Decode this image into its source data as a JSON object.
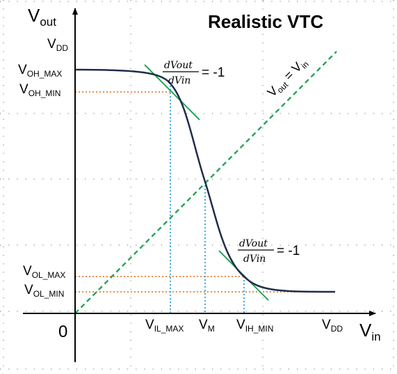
{
  "title": "Realistic VTC",
  "axes": {
    "y_main": "V",
    "y_sub": "out",
    "x_main": "V",
    "x_sub": "in",
    "origin": "0"
  },
  "y_levels": {
    "vdd": {
      "main": "V",
      "sub": "DD"
    },
    "voh_max": {
      "main": "V",
      "sub": "OH_MAX"
    },
    "voh_min": {
      "main": "V",
      "sub": "OH_MIN"
    },
    "vol_max": {
      "main": "V",
      "sub": "OL_MAX"
    },
    "vol_min": {
      "main": "V",
      "sub": "OL_MIN"
    }
  },
  "x_levels": {
    "vil_max": {
      "main": "V",
      "sub": "IL_MAX"
    },
    "vm": {
      "main": "V",
      "sub": "M"
    },
    "vih_min": {
      "main": "V",
      "sub": "IH_MIN"
    },
    "vdd": {
      "main": "V",
      "sub": "DD"
    }
  },
  "diagonal": {
    "a_main": "V",
    "a_sub": "out",
    "eq": " = ",
    "b_main": "V",
    "b_sub": "in"
  },
  "slope_annotations": {
    "numerator": "dVout",
    "denominator": "dVin",
    "value": "= -1"
  },
  "colors": {
    "curve": "#1f2d4a",
    "diagonal": "#22a55a",
    "tangent": "#22a55a",
    "level_guides": "#ed7d31",
    "drop_lines": "#2aa6d8",
    "axes": "#000000",
    "background_grid": "#555555"
  }
}
